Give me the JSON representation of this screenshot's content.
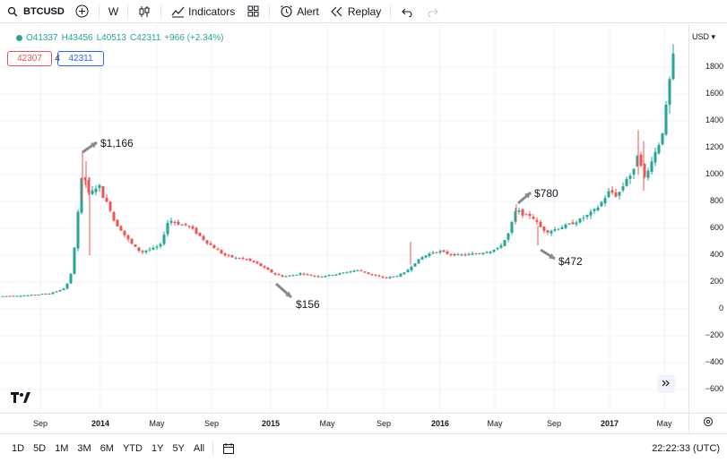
{
  "toolbar": {
    "symbol": "BTCUSD",
    "interval": "W",
    "indicators": "Indicators",
    "alert": "Alert",
    "replay": "Replay"
  },
  "legend": {
    "open": "O41337",
    "high": "H43456",
    "low": "L40513",
    "close": "C42311",
    "change": "+966 (+2.34%)"
  },
  "quote": {
    "bid": "42307",
    "spread": "4",
    "ask": "42311"
  },
  "annotations": {
    "peak_2013": "$1,166",
    "low_2015": "$156",
    "peak_2016": "$780",
    "low_2016": "$472"
  },
  "price_scale": {
    "currency": "USD",
    "ticks": [
      "1800",
      "1600",
      "1400",
      "1200",
      "1000",
      "800",
      "600",
      "400",
      "200",
      "0",
      "−200",
      "−400",
      "−600"
    ]
  },
  "time_scale": {
    "ticks": [
      "Sep",
      "2014",
      "May",
      "Sep",
      "2015",
      "May",
      "Sep",
      "2016",
      "May",
      "Sep",
      "2017",
      "May"
    ]
  },
  "ranges": [
    "1D",
    "5D",
    "1M",
    "3M",
    "6M",
    "YTD",
    "1Y",
    "5Y",
    "All"
  ],
  "clock": "22:22:33 (UTC)",
  "colors": {
    "up": "#26a69a",
    "down": "#ef5350",
    "grid": "#f0f3fa",
    "arrow": "#8a8a8a"
  },
  "chart_data": {
    "type": "candlestick",
    "ylim": [
      -700,
      1900
    ],
    "x": [
      "2013-08",
      "2013-10",
      "2013-12",
      "2014-02",
      "2014-04",
      "2014-06",
      "2014-08",
      "2014-10",
      "2014-12",
      "2015-02",
      "2015-04",
      "2015-06",
      "2015-08",
      "2015-10",
      "2015-12",
      "2016-02",
      "2016-04",
      "2016-06",
      "2016-08",
      "2016-10",
      "2016-12",
      "2017-02",
      "2017-04",
      "2017-05"
    ],
    "close": [
      100,
      130,
      950,
      850,
      450,
      620,
      540,
      400,
      320,
      250,
      240,
      260,
      230,
      300,
      430,
      400,
      440,
      700,
      580,
      640,
      760,
      1100,
      1200,
      1950
    ]
  }
}
